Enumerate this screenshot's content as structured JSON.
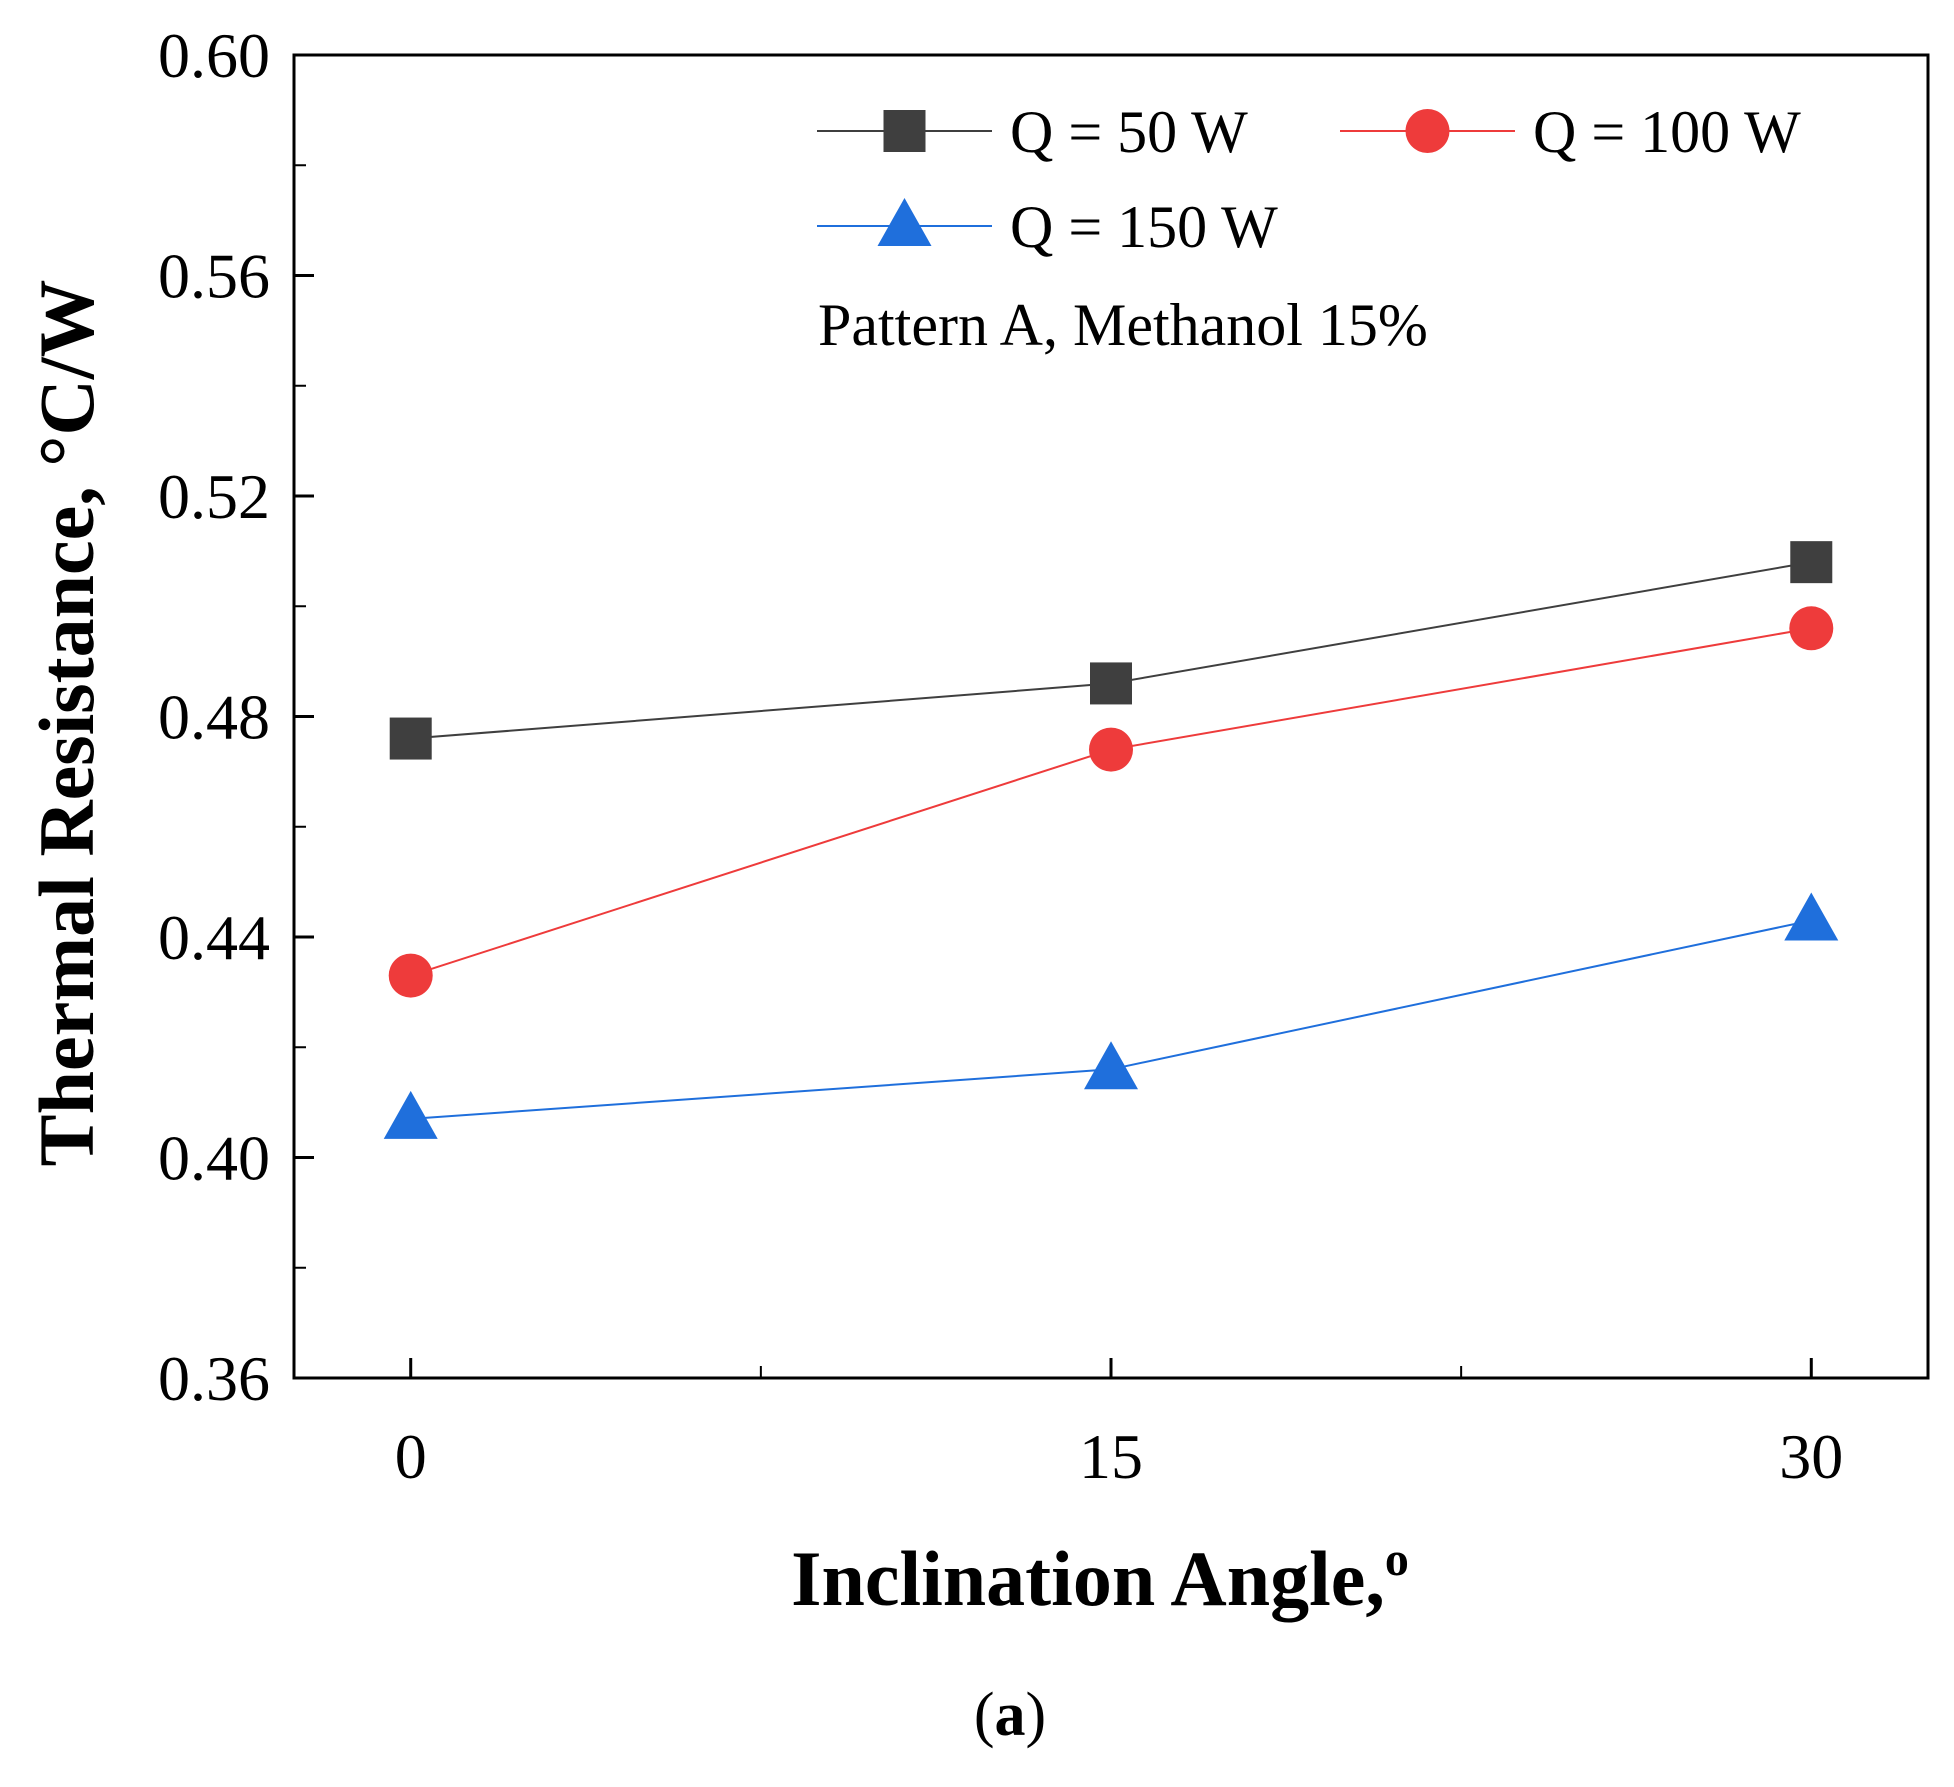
{
  "chart_data": {
    "type": "line",
    "title": "",
    "xlabel": "Inclination Angle,",
    "xlabel_sup": "o",
    "ylabel": "Thermal Resistance, °C/W",
    "x": [
      0,
      15,
      30
    ],
    "x_tick_labels": [
      "0",
      "15",
      "30"
    ],
    "xlim": [
      -2.5,
      32.5
    ],
    "ylim": [
      0.36,
      0.6
    ],
    "y_ticks": [
      0.36,
      0.4,
      0.44,
      0.48,
      0.52,
      0.56,
      0.6
    ],
    "y_tick_labels": [
      "0.36",
      "0.40",
      "0.44",
      "0.48",
      "0.52",
      "0.56",
      "0.60"
    ],
    "grid": false,
    "legend_position": "top-right",
    "series": [
      {
        "name": "Q = 50 W",
        "values": [
          0.476,
          0.486,
          0.508
        ],
        "color": "#3f3f3f",
        "marker": "square"
      },
      {
        "name": "Q = 100 W",
        "values": [
          0.433,
          0.474,
          0.496
        ],
        "color": "#ee3b3b",
        "marker": "circle"
      },
      {
        "name": "Q = 150 W",
        "values": [
          0.407,
          0.416,
          0.443
        ],
        "color": "#1f6fdc",
        "marker": "triangle"
      }
    ],
    "annotation": "Pattern A, Methanol 15%"
  },
  "caption": {
    "open": "(",
    "letter": "a",
    "close": ")"
  }
}
